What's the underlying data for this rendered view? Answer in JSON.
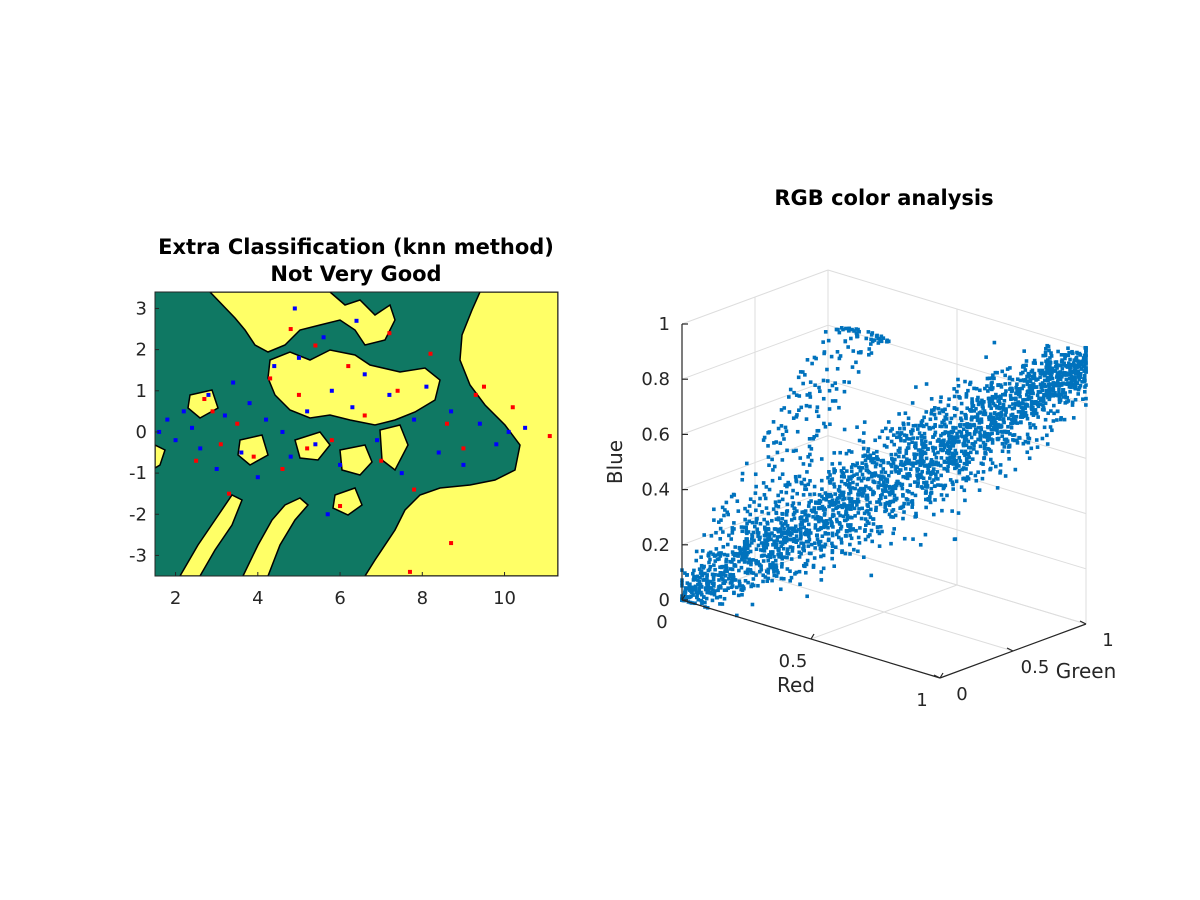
{
  "chart_data": [
    {
      "type": "scatter",
      "title": "Extra Classification (knn method)",
      "subtitle": "Not Very Good",
      "xlabel": "",
      "ylabel": "",
      "xlim": [
        1.5,
        11.3
      ],
      "ylim": [
        -3.5,
        3.4
      ],
      "x_ticks": [
        "2",
        "4",
        "6",
        "8",
        "10"
      ],
      "y_ticks": [
        "3",
        "2",
        "1",
        "0",
        "-1",
        "-2",
        "-3"
      ],
      "grid": false,
      "background": "decision regions (filled contour) for two classes",
      "region_colors": {
        "class_a": "#0f7863",
        "class_b": "#ffff66",
        "boundary": "#000000"
      },
      "series": [
        {
          "color": "#ff0000",
          "marker": "square",
          "points": [
            [
              2.7,
              0.8
            ],
            [
              2.9,
              0.5
            ],
            [
              3.1,
              -0.3
            ],
            [
              3.5,
              0.2
            ],
            [
              3.9,
              -0.6
            ],
            [
              4.3,
              1.3
            ],
            [
              4.6,
              -0.9
            ],
            [
              5.0,
              0.9
            ],
            [
              5.4,
              2.1
            ],
            [
              5.8,
              -0.2
            ],
            [
              6.2,
              1.6
            ],
            [
              6.6,
              0.4
            ],
            [
              7.0,
              -0.7
            ],
            [
              7.4,
              1.0
            ],
            [
              7.8,
              -1.4
            ],
            [
              8.2,
              1.9
            ],
            [
              8.6,
              0.2
            ],
            [
              9.0,
              -0.4
            ],
            [
              9.3,
              0.9
            ],
            [
              10.2,
              0.6
            ],
            [
              11.1,
              -0.1
            ],
            [
              8.7,
              -2.7
            ],
            [
              7.7,
              -3.4
            ],
            [
              4.8,
              2.5
            ],
            [
              3.3,
              -1.5
            ],
            [
              6.0,
              -1.8
            ],
            [
              2.5,
              -0.7
            ],
            [
              5.2,
              -0.4
            ],
            [
              7.2,
              2.4
            ],
            [
              9.5,
              1.1
            ]
          ]
        },
        {
          "color": "#0000ff",
          "marker": "square",
          "points": [
            [
              1.6,
              0.0
            ],
            [
              1.8,
              0.3
            ],
            [
              2.0,
              -0.2
            ],
            [
              2.2,
              0.5
            ],
            [
              2.4,
              0.1
            ],
            [
              2.6,
              -0.4
            ],
            [
              2.8,
              0.9
            ],
            [
              3.0,
              -0.9
            ],
            [
              3.2,
              0.4
            ],
            [
              3.4,
              1.2
            ],
            [
              3.6,
              -0.5
            ],
            [
              3.8,
              0.7
            ],
            [
              4.0,
              -1.1
            ],
            [
              4.2,
              0.3
            ],
            [
              4.4,
              1.6
            ],
            [
              4.6,
              0.0
            ],
            [
              4.8,
              -0.6
            ],
            [
              5.0,
              1.8
            ],
            [
              5.2,
              0.5
            ],
            [
              5.4,
              -0.3
            ],
            [
              5.6,
              2.3
            ],
            [
              5.8,
              1.0
            ],
            [
              6.0,
              -0.8
            ],
            [
              6.3,
              0.6
            ],
            [
              6.6,
              1.4
            ],
            [
              6.9,
              -0.2
            ],
            [
              7.2,
              0.9
            ],
            [
              7.5,
              -1.0
            ],
            [
              7.8,
              0.3
            ],
            [
              8.1,
              1.1
            ],
            [
              8.4,
              -0.5
            ],
            [
              8.7,
              0.5
            ],
            [
              9.0,
              -0.8
            ],
            [
              9.4,
              0.2
            ],
            [
              9.8,
              -0.3
            ],
            [
              10.1,
              0.0
            ],
            [
              10.5,
              0.1
            ],
            [
              5.7,
              -2.0
            ],
            [
              6.4,
              2.7
            ],
            [
              4.9,
              3.0
            ]
          ]
        }
      ]
    },
    {
      "type": "scatter",
      "title": "RGB color analysis",
      "xlabel": "Red",
      "ylabel": "Green",
      "zlabel": "Blue",
      "xlim": [
        0,
        1
      ],
      "ylim": [
        0,
        1
      ],
      "zlim": [
        0,
        1
      ],
      "x_ticks": [
        "0",
        "0.5",
        "1"
      ],
      "y_ticks": [
        "0",
        "0.5",
        "1"
      ],
      "z_ticks": [
        "0",
        "0.2",
        "0.4",
        "0.6",
        "0.8",
        "1"
      ],
      "grid": true,
      "marker": "square",
      "color": "#0072bd",
      "description_values": "dense point cloud rising along the diagonal from (0,0,0) toward (1,1,1)"
    }
  ]
}
